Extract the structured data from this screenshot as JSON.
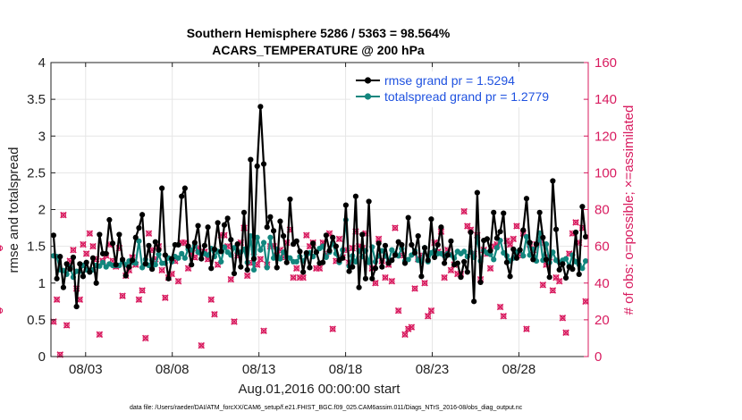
{
  "colors": {
    "rmse": "#000000",
    "spread": "#12867e",
    "obs": "#d81b5f",
    "legend_text": "#1f52e0",
    "grid": "#e6e6e6"
  },
  "chart_data": {
    "type": "line",
    "title_line1": "Southern Hemisphere 5286 / 5363 = 98.564%",
    "title_line2": "ACARS_TEMPERATURE @ 200 hPa",
    "xlabel": "Aug.01,2016 00:00:00 start",
    "ylabel_left": "rmse and totalspread",
    "ylabel_right": "# of obs: o=possible; ×=assimilated",
    "footer": "data file: /Users/raeder/DAI/ATM_forcXX/CAM6_setup/f.e21.FHIST_BGC.f09_025.CAM6assim.011/Diags_NTrS_2016-08/obs_diag_output.nc",
    "xlim": [
      1.0,
      32.0
    ],
    "ylim_left": [
      0,
      4
    ],
    "ylim_right": [
      0,
      160
    ],
    "x_ticks": [
      3,
      8,
      13,
      18,
      23,
      28
    ],
    "x_tick_labels": [
      "08/03",
      "08/08",
      "08/13",
      "08/18",
      "08/23",
      "08/28"
    ],
    "y_ticks_left": [
      0,
      0.5,
      1,
      1.5,
      2,
      2.5,
      3,
      3.5,
      4
    ],
    "y_tick_labels_left": [
      "0",
      "0.5",
      "1",
      "1.5",
      "2",
      "2.5",
      "3",
      "3.5",
      "4"
    ],
    "y_ticks_right": [
      0,
      20,
      40,
      60,
      80,
      100,
      120,
      140,
      160
    ],
    "y_tick_labels_right": [
      "0",
      "20",
      "40",
      "60",
      "80",
      "100",
      "120",
      "140",
      "160"
    ],
    "legend": [
      {
        "label": "rmse grand pr = 1.5294",
        "series": "rmse"
      },
      {
        "label": "totalspread grand pr = 1.2779",
        "series": "spread"
      }
    ],
    "series": [
      {
        "name": "rmse",
        "values": [
          1.65,
          1.06,
          1.36,
          0.94,
          1.26,
          1.19,
          1.35,
          0.68,
          1.26,
          1.09,
          1.28,
          1.15,
          1.34,
          1.0,
          1.66,
          1.4,
          1.4,
          1.86,
          1.54,
          1.25,
          1.66,
          1.32,
          1.1,
          1.22,
          1.31,
          1.62,
          1.75,
          1.93,
          1.26,
          1.51,
          1.19,
          1.56,
          1.45,
          2.29,
          1.38,
          1.06,
          1.33,
          1.52,
          1.52,
          2.18,
          2.29,
          1.5,
          1.25,
          1.55,
          1.78,
          1.33,
          1.51,
          1.76,
          1.2,
          1.46,
          1.82,
          1.43,
          1.79,
          1.88,
          1.59,
          1.13,
          1.53,
          1.22,
          1.96,
          1.18,
          2.68,
          1.33,
          2.59,
          3.4,
          2.62,
          1.76,
          1.9,
          1.71,
          1.21,
          1.84,
          1.64,
          1.28,
          2.14,
          1.53,
          1.57,
          1.43,
          1.15,
          1.41,
          1.21,
          1.54,
          1.42,
          1.27,
          1.28,
          1.65,
          1.44,
          1.62,
          1.5,
          1.31,
          1.34,
          2.06,
          1.16,
          1.22,
          2.18,
          0.94,
          1.66,
          1.06,
          2.11,
          1.06,
          1.2,
          1.54,
          1.22,
          1.51,
          1.27,
          1.31,
          1.38,
          1.56,
          1.52,
          1.27,
          1.89,
          1.52,
          1.41,
          1.64,
          1.09,
          1.48,
          1.31,
          1.87,
          1.35,
          1.52,
          1.76,
          1.27,
          1.38,
          1.57,
          1.25,
          1.27,
          1.08,
          1.29,
          1.15,
          1.69,
          0.75,
          2.23,
          1.01,
          1.58,
          1.6,
          1.44,
          1.96,
          1.61,
          1.7,
          1.95,
          1.28,
          1.09,
          1.46,
          1.34,
          1.45,
          1.72,
          2.15,
          1.55,
          1.32,
          1.53,
          1.96,
          1.62,
          1.32,
          1.08,
          2.39,
          1.73,
          1.18,
          1.26,
          1.07,
          1.22,
          1.19,
          1.69,
          1.12,
          2.04,
          1.63
        ]
      },
      {
        "name": "totalspread",
        "values": [
          1.37,
          1.36,
          1.18,
          1.17,
          1.12,
          1.22,
          1.08,
          1.16,
          1.16,
          1.24,
          1.18,
          1.15,
          1.18,
          1.24,
          1.23,
          1.28,
          1.22,
          1.26,
          1.24,
          1.24,
          1.24,
          1.29,
          1.25,
          1.3,
          1.28,
          1.27,
          1.57,
          1.21,
          1.32,
          1.24,
          1.31,
          1.25,
          1.39,
          1.27,
          1.27,
          1.34,
          1.29,
          1.36,
          1.34,
          1.4,
          1.34,
          1.46,
          1.45,
          1.51,
          1.42,
          1.39,
          1.4,
          1.38,
          1.47,
          1.36,
          1.43,
          1.29,
          1.49,
          1.42,
          1.38,
          1.48,
          1.42,
          1.42,
          1.46,
          1.28,
          1.64,
          1.18,
          1.62,
          1.45,
          1.55,
          1.21,
          1.62,
          1.34,
          1.46,
          1.33,
          1.42,
          1.35,
          1.34,
          1.29,
          1.29,
          1.36,
          1.3,
          1.38,
          1.41,
          1.36,
          1.42,
          1.47,
          1.5,
          1.35,
          1.42,
          1.55,
          1.4,
          1.28,
          1.45,
          1.86,
          1.23,
          1.37,
          1.29,
          1.44,
          1.36,
          1.44,
          1.28,
          1.49,
          1.29,
          1.37,
          1.44,
          1.37,
          1.29,
          1.45,
          1.4,
          1.37,
          1.47,
          1.3,
          1.32,
          1.38,
          1.44,
          1.31,
          1.29,
          1.48,
          1.29,
          1.41,
          1.44,
          1.4,
          1.4,
          1.37,
          1.4,
          1.38,
          1.34,
          1.43,
          1.4,
          1.43,
          1.36,
          1.42,
          1.35,
          1.62,
          1.3,
          1.44,
          1.41,
          1.39,
          1.32,
          1.48,
          1.58,
          1.41,
          1.37,
          1.3,
          1.34,
          1.42,
          1.45,
          1.37,
          1.63,
          1.38,
          1.46,
          1.3,
          1.68,
          1.31,
          1.53,
          1.28,
          1.42,
          1.31,
          1.28,
          1.31,
          1.33,
          1.23,
          1.38,
          1.29,
          1.25,
          1.2,
          1.3
        ]
      },
      {
        "name": "obs_count",
        "values": [
          19,
          31,
          1,
          77,
          17,
          52,
          58,
          37,
          31,
          61,
          56,
          67,
          60,
          53,
          12,
          52,
          55,
          61,
          52,
          49,
          59,
          33,
          44,
          47,
          54,
          50,
          31,
          36,
          10,
          67,
          58,
          53,
          60,
          47,
          32,
          43,
          45,
          52,
          41,
          62,
          62,
          48,
          56,
          54,
          59,
          6,
          57,
          53,
          31,
          23,
          50,
          66,
          66,
          60,
          42,
          19,
          55,
          62,
          70,
          44,
          51,
          57,
          50,
          53,
          14,
          50,
          60,
          60,
          55,
          58,
          54,
          62,
          69,
          43,
          48,
          43,
          43,
          66,
          60,
          62,
          48,
          48,
          62,
          56,
          67,
          15,
          52,
          64,
          54,
          58,
          51,
          59,
          68,
          60,
          59,
          67,
          52,
          48,
          40,
          64,
          52,
          43,
          50,
          41,
          70,
          25,
          55,
          12,
          15,
          16,
          37,
          53,
          55,
          40,
          22,
          25,
          62,
          57,
          68,
          43,
          58,
          47,
          50,
          45,
          45,
          79,
          71,
          69,
          56,
          66,
          42,
          58,
          56,
          48,
          60,
          61,
          27,
          22,
          63,
          61,
          64,
          71,
          55,
          67,
          15,
          61,
          58,
          61,
          62,
          39,
          50,
          54,
          36,
          43,
          41,
          21,
          13,
          56,
          67,
          73,
          62,
          70,
          30,
          25,
          59
        ]
      }
    ]
  }
}
